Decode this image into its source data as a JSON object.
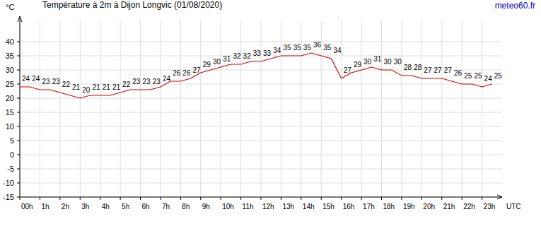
{
  "chart_data": {
    "type": "line",
    "title": "Température à 2m à Dijon Longvic (01/08/2020)",
    "source": "meteo60.fr",
    "y_label": "°C",
    "x_label": "UTC",
    "x": [
      0,
      0.5,
      1,
      1.5,
      2,
      2.5,
      3,
      3.5,
      4,
      4.5,
      5,
      5.5,
      6,
      6.5,
      7,
      7.5,
      8,
      8.5,
      9,
      9.5,
      10,
      10.5,
      11,
      11.5,
      12,
      12.5,
      13,
      13.5,
      14,
      14.5,
      15,
      15.5,
      16,
      16.5,
      17,
      17.5,
      18,
      18.5,
      19,
      19.5,
      20,
      20.5,
      21,
      21.5,
      22,
      22.5,
      23,
      23.5
    ],
    "series": [
      {
        "name": "Température",
        "color": "#d40000",
        "values": [
          24,
          24,
          23,
          23,
          22,
          21,
          20,
          21,
          21,
          21,
          22,
          23,
          23,
          23,
          24,
          26,
          26,
          27,
          29,
          30,
          31,
          32,
          32,
          33,
          33,
          34,
          35,
          35,
          35,
          36,
          35,
          34,
          27,
          29,
          30,
          31,
          30,
          30,
          28,
          28,
          27,
          27,
          27,
          26,
          25,
          25,
          24,
          25
        ]
      }
    ],
    "xlim": [
      0,
      24
    ],
    "xticks": [
      {
        "value": 0,
        "label": "00h"
      },
      {
        "value": 1,
        "label": "1h"
      },
      {
        "value": 2,
        "label": "2h"
      },
      {
        "value": 3,
        "label": "3h"
      },
      {
        "value": 4,
        "label": "4h"
      },
      {
        "value": 5,
        "label": "5h"
      },
      {
        "value": 6,
        "label": "6h"
      },
      {
        "value": 7,
        "label": "7h"
      },
      {
        "value": 8,
        "label": "8h"
      },
      {
        "value": 9,
        "label": "9h"
      },
      {
        "value": 10,
        "label": "10h"
      },
      {
        "value": 11,
        "label": "11h"
      },
      {
        "value": 12,
        "label": "12h"
      },
      {
        "value": 13,
        "label": "13h"
      },
      {
        "value": 14,
        "label": "14h"
      },
      {
        "value": 15,
        "label": "15h"
      },
      {
        "value": 16,
        "label": "16h"
      },
      {
        "value": 17,
        "label": "17h"
      },
      {
        "value": 18,
        "label": "18h"
      },
      {
        "value": 19,
        "label": "19h"
      },
      {
        "value": 20,
        "label": "20h"
      },
      {
        "value": 21,
        "label": "21h"
      },
      {
        "value": 22,
        "label": "22h"
      },
      {
        "value": 23,
        "label": "23h"
      }
    ],
    "ylim": [
      -15,
      45
    ],
    "yticks": [
      -15,
      -10,
      -5,
      0,
      5,
      10,
      15,
      20,
      25,
      30,
      35,
      40
    ],
    "grid": true,
    "data_labels": true
  }
}
